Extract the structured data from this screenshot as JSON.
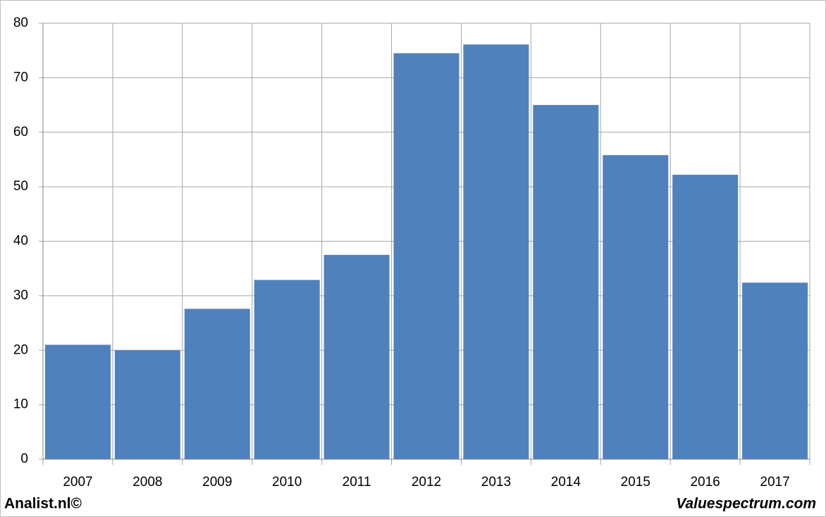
{
  "chart_data": {
    "type": "bar",
    "categories": [
      "2007",
      "2008",
      "2009",
      "2010",
      "2011",
      "2012",
      "2013",
      "2014",
      "2015",
      "2016",
      "2017"
    ],
    "values": [
      21.0,
      20.0,
      27.6,
      32.9,
      37.5,
      74.5,
      76.1,
      65.0,
      55.8,
      52.2,
      32.4
    ],
    "color": "#4f81bd",
    "ylim": [
      0,
      80
    ],
    "yticks": [
      0,
      10,
      20,
      30,
      40,
      50,
      60,
      70,
      80
    ],
    "grid": true,
    "footer_left": "Analist.nl©",
    "footer_right": "Valuespectrum.com"
  }
}
